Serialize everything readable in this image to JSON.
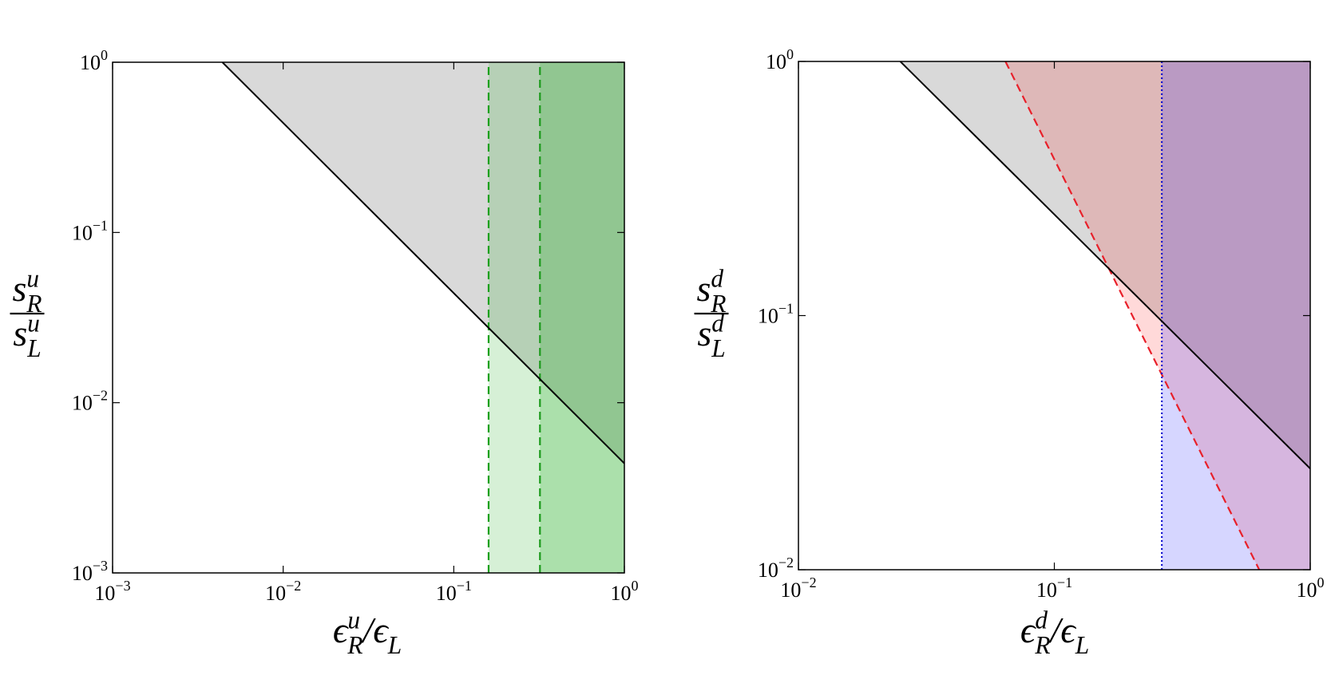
{
  "chart_data": [
    {
      "type": "line",
      "xscale": "log",
      "yscale": "log",
      "xlim": [
        0.001,
        1
      ],
      "ylim": [
        0.001,
        1
      ],
      "xticks": [
        {
          "value": 0.001,
          "label": "10",
          "exponent": "−3"
        },
        {
          "value": 0.01,
          "label": "10",
          "exponent": "−2"
        },
        {
          "value": 0.1,
          "label": "10",
          "exponent": "−1"
        },
        {
          "value": 1,
          "label": "10",
          "exponent": "0"
        }
      ],
      "yticks": [
        {
          "value": 0.001,
          "label": "10",
          "exponent": "−3"
        },
        {
          "value": 0.01,
          "label": "10",
          "exponent": "−2"
        },
        {
          "value": 0.1,
          "label": "10",
          "exponent": "−1"
        },
        {
          "value": 1,
          "label": "10",
          "exponent": "0"
        }
      ],
      "xlabel": [
        {
          "text": "ϵ",
          "role": "base"
        },
        {
          "text": "u",
          "role": "sup"
        },
        {
          "text": "R",
          "role": "sub"
        },
        {
          "text": "/ϵ",
          "role": "base"
        },
        {
          "text": "L",
          "role": "sub"
        }
      ],
      "ylabel": {
        "numerator": [
          {
            "text": "s",
            "role": "base"
          },
          {
            "text": "u",
            "role": "sup"
          },
          {
            "text": "R",
            "role": "sub"
          }
        ],
        "denominator": [
          {
            "text": "s",
            "role": "base"
          },
          {
            "text": "u",
            "role": "sup"
          },
          {
            "text": "L",
            "role": "sub"
          }
        ]
      },
      "series": [
        {
          "x": [
            0.0044,
            1
          ],
          "values": [
            1,
            0.0044
          ],
          "color": "#000000",
          "style": "solid",
          "fill": "above",
          "fill_color": "#d9d9d9",
          "fill_opacity": 1
        },
        {
          "x": [
            0.16,
            0.16
          ],
          "values": [
            0.001,
            1
          ],
          "color": "#1ca01c",
          "style": "dashed",
          "fill": "right",
          "fill_color": "#00a000",
          "fill_opacity": 0.16
        },
        {
          "x": [
            0.32,
            0.32
          ],
          "values": [
            0.001,
            1
          ],
          "color": "#1c9a1c",
          "style": "dashed",
          "fill": "right",
          "fill_color": "#00a000",
          "fill_opacity": 0.2
        }
      ]
    },
    {
      "type": "line",
      "xscale": "log",
      "yscale": "log",
      "xlim": [
        0.01,
        1
      ],
      "ylim": [
        0.01,
        1
      ],
      "xticks": [
        {
          "value": 0.01,
          "label": "10",
          "exponent": "−2"
        },
        {
          "value": 0.1,
          "label": "10",
          "exponent": "−1"
        },
        {
          "value": 1,
          "label": "10",
          "exponent": "0"
        }
      ],
      "yticks": [
        {
          "value": 0.01,
          "label": "10",
          "exponent": "−2"
        },
        {
          "value": 0.1,
          "label": "10",
          "exponent": "−1"
        },
        {
          "value": 1,
          "label": "10",
          "exponent": "0"
        }
      ],
      "xlabel": [
        {
          "text": "ϵ",
          "role": "base"
        },
        {
          "text": "d",
          "role": "sup"
        },
        {
          "text": "R",
          "role": "sub"
        },
        {
          "text": "/ϵ",
          "role": "base"
        },
        {
          "text": "L",
          "role": "sub"
        }
      ],
      "ylabel": {
        "numerator": [
          {
            "text": "s",
            "role": "base"
          },
          {
            "text": "d",
            "role": "sup"
          },
          {
            "text": "R",
            "role": "sub"
          }
        ],
        "denominator": [
          {
            "text": "s",
            "role": "base"
          },
          {
            "text": "d",
            "role": "sup"
          },
          {
            "text": "L",
            "role": "sub"
          }
        ]
      },
      "series": [
        {
          "x": [
            0.025,
            1
          ],
          "values": [
            1,
            0.025
          ],
          "color": "#000000",
          "style": "solid",
          "fill": "above",
          "fill_color": "#d9d9d9",
          "fill_opacity": 1
        },
        {
          "x": [
            0.0644,
            0.632
          ],
          "values": [
            1,
            0.01
          ],
          "color": "#e8202a",
          "style": "dashed",
          "fill": "above",
          "fill_color": "#ff0000",
          "fill_opacity": 0.15
        },
        {
          "x": [
            0.263,
            0.263
          ],
          "values": [
            0.01,
            1
          ],
          "color": "#1010d0",
          "style": "dotted",
          "fill": "right",
          "fill_color": "#0000ff",
          "fill_opacity": 0.16
        }
      ]
    }
  ]
}
